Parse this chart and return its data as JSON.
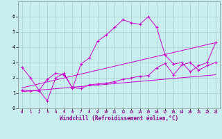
{
  "xlabel": "Windchill (Refroidissement éolien,°C)",
  "bg_color": "#c8eef0",
  "line_color": "#cc00cc",
  "grid_color": "#aacccc",
  "xlim": [
    -0.5,
    23.5
  ],
  "ylim": [
    0,
    7
  ],
  "xticks": [
    0,
    1,
    2,
    3,
    4,
    5,
    6,
    7,
    8,
    9,
    10,
    11,
    12,
    13,
    14,
    15,
    16,
    17,
    18,
    19,
    20,
    21,
    22,
    23
  ],
  "yticks": [
    0,
    1,
    2,
    3,
    4,
    5,
    6
  ],
  "series": [
    {
      "x": [
        0,
        1,
        2,
        3,
        4,
        5,
        6,
        7,
        8,
        9,
        10,
        11,
        12,
        13,
        14,
        15,
        16,
        17,
        18,
        19,
        20,
        21,
        22,
        23
      ],
      "y": [
        2.7,
        2.0,
        1.2,
        0.5,
        2.0,
        2.3,
        1.3,
        2.9,
        3.3,
        4.4,
        4.8,
        5.3,
        5.8,
        5.6,
        5.5,
        6.0,
        5.3,
        3.5,
        2.9,
        3.0,
        2.4,
        2.8,
        3.0,
        4.3
      ],
      "marker": true
    },
    {
      "x": [
        0,
        1,
        2,
        3,
        4,
        5,
        6,
        7,
        8,
        9,
        10,
        11,
        12,
        13,
        14,
        15,
        16,
        17,
        18,
        19,
        20,
        21,
        22,
        23
      ],
      "y": [
        1.2,
        1.15,
        1.15,
        1.9,
        2.3,
        2.2,
        1.35,
        1.3,
        1.55,
        1.6,
        1.65,
        1.75,
        1.9,
        2.0,
        2.1,
        2.15,
        2.65,
        2.95,
        2.2,
        2.85,
        3.0,
        2.5,
        2.8,
        3.0
      ],
      "marker": true
    },
    {
      "x": [
        0,
        23
      ],
      "y": [
        1.1,
        2.2
      ],
      "marker": false
    },
    {
      "x": [
        0,
        23
      ],
      "y": [
        1.35,
        4.3
      ],
      "marker": false
    }
  ]
}
